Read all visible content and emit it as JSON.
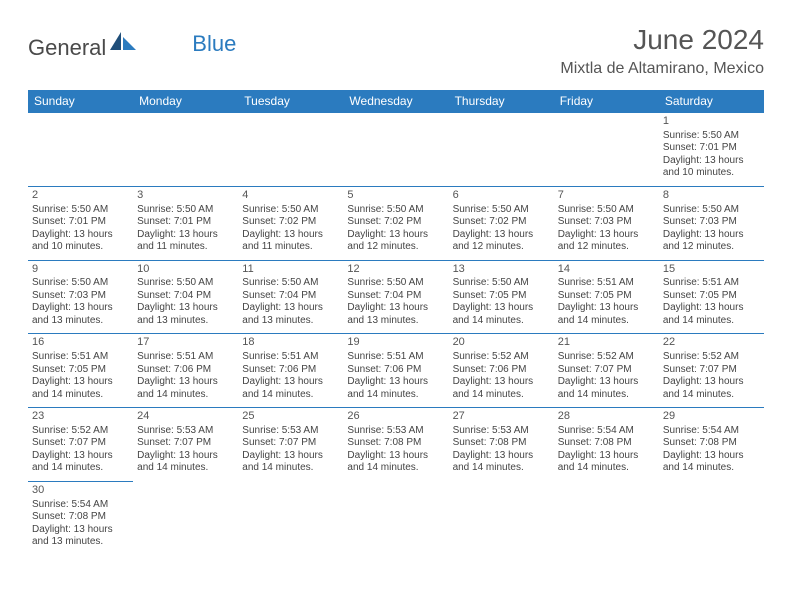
{
  "brand": {
    "part1": "General",
    "part2": "Blue"
  },
  "title": "June 2024",
  "location": "Mixtla de Altamirano, Mexico",
  "colors": {
    "header_bg": "#2b7bbf",
    "header_text": "#ffffff",
    "border": "#2b7bbf",
    "body_text": "#444444",
    "title_text": "#555555",
    "background": "#ffffff"
  },
  "weekdays": [
    "Sunday",
    "Monday",
    "Tuesday",
    "Wednesday",
    "Thursday",
    "Friday",
    "Saturday"
  ],
  "grid": [
    [
      null,
      null,
      null,
      null,
      null,
      null,
      {
        "n": "1",
        "sr": "Sunrise: 5:50 AM",
        "ss": "Sunset: 7:01 PM",
        "d1": "Daylight: 13 hours",
        "d2": "and 10 minutes."
      }
    ],
    [
      {
        "n": "2",
        "sr": "Sunrise: 5:50 AM",
        "ss": "Sunset: 7:01 PM",
        "d1": "Daylight: 13 hours",
        "d2": "and 10 minutes."
      },
      {
        "n": "3",
        "sr": "Sunrise: 5:50 AM",
        "ss": "Sunset: 7:01 PM",
        "d1": "Daylight: 13 hours",
        "d2": "and 11 minutes."
      },
      {
        "n": "4",
        "sr": "Sunrise: 5:50 AM",
        "ss": "Sunset: 7:02 PM",
        "d1": "Daylight: 13 hours",
        "d2": "and 11 minutes."
      },
      {
        "n": "5",
        "sr": "Sunrise: 5:50 AM",
        "ss": "Sunset: 7:02 PM",
        "d1": "Daylight: 13 hours",
        "d2": "and 12 minutes."
      },
      {
        "n": "6",
        "sr": "Sunrise: 5:50 AM",
        "ss": "Sunset: 7:02 PM",
        "d1": "Daylight: 13 hours",
        "d2": "and 12 minutes."
      },
      {
        "n": "7",
        "sr": "Sunrise: 5:50 AM",
        "ss": "Sunset: 7:03 PM",
        "d1": "Daylight: 13 hours",
        "d2": "and 12 minutes."
      },
      {
        "n": "8",
        "sr": "Sunrise: 5:50 AM",
        "ss": "Sunset: 7:03 PM",
        "d1": "Daylight: 13 hours",
        "d2": "and 12 minutes."
      }
    ],
    [
      {
        "n": "9",
        "sr": "Sunrise: 5:50 AM",
        "ss": "Sunset: 7:03 PM",
        "d1": "Daylight: 13 hours",
        "d2": "and 13 minutes."
      },
      {
        "n": "10",
        "sr": "Sunrise: 5:50 AM",
        "ss": "Sunset: 7:04 PM",
        "d1": "Daylight: 13 hours",
        "d2": "and 13 minutes."
      },
      {
        "n": "11",
        "sr": "Sunrise: 5:50 AM",
        "ss": "Sunset: 7:04 PM",
        "d1": "Daylight: 13 hours",
        "d2": "and 13 minutes."
      },
      {
        "n": "12",
        "sr": "Sunrise: 5:50 AM",
        "ss": "Sunset: 7:04 PM",
        "d1": "Daylight: 13 hours",
        "d2": "and 13 minutes."
      },
      {
        "n": "13",
        "sr": "Sunrise: 5:50 AM",
        "ss": "Sunset: 7:05 PM",
        "d1": "Daylight: 13 hours",
        "d2": "and 14 minutes."
      },
      {
        "n": "14",
        "sr": "Sunrise: 5:51 AM",
        "ss": "Sunset: 7:05 PM",
        "d1": "Daylight: 13 hours",
        "d2": "and 14 minutes."
      },
      {
        "n": "15",
        "sr": "Sunrise: 5:51 AM",
        "ss": "Sunset: 7:05 PM",
        "d1": "Daylight: 13 hours",
        "d2": "and 14 minutes."
      }
    ],
    [
      {
        "n": "16",
        "sr": "Sunrise: 5:51 AM",
        "ss": "Sunset: 7:05 PM",
        "d1": "Daylight: 13 hours",
        "d2": "and 14 minutes."
      },
      {
        "n": "17",
        "sr": "Sunrise: 5:51 AM",
        "ss": "Sunset: 7:06 PM",
        "d1": "Daylight: 13 hours",
        "d2": "and 14 minutes."
      },
      {
        "n": "18",
        "sr": "Sunrise: 5:51 AM",
        "ss": "Sunset: 7:06 PM",
        "d1": "Daylight: 13 hours",
        "d2": "and 14 minutes."
      },
      {
        "n": "19",
        "sr": "Sunrise: 5:51 AM",
        "ss": "Sunset: 7:06 PM",
        "d1": "Daylight: 13 hours",
        "d2": "and 14 minutes."
      },
      {
        "n": "20",
        "sr": "Sunrise: 5:52 AM",
        "ss": "Sunset: 7:06 PM",
        "d1": "Daylight: 13 hours",
        "d2": "and 14 minutes."
      },
      {
        "n": "21",
        "sr": "Sunrise: 5:52 AM",
        "ss": "Sunset: 7:07 PM",
        "d1": "Daylight: 13 hours",
        "d2": "and 14 minutes."
      },
      {
        "n": "22",
        "sr": "Sunrise: 5:52 AM",
        "ss": "Sunset: 7:07 PM",
        "d1": "Daylight: 13 hours",
        "d2": "and 14 minutes."
      }
    ],
    [
      {
        "n": "23",
        "sr": "Sunrise: 5:52 AM",
        "ss": "Sunset: 7:07 PM",
        "d1": "Daylight: 13 hours",
        "d2": "and 14 minutes."
      },
      {
        "n": "24",
        "sr": "Sunrise: 5:53 AM",
        "ss": "Sunset: 7:07 PM",
        "d1": "Daylight: 13 hours",
        "d2": "and 14 minutes."
      },
      {
        "n": "25",
        "sr": "Sunrise: 5:53 AM",
        "ss": "Sunset: 7:07 PM",
        "d1": "Daylight: 13 hours",
        "d2": "and 14 minutes."
      },
      {
        "n": "26",
        "sr": "Sunrise: 5:53 AM",
        "ss": "Sunset: 7:08 PM",
        "d1": "Daylight: 13 hours",
        "d2": "and 14 minutes."
      },
      {
        "n": "27",
        "sr": "Sunrise: 5:53 AM",
        "ss": "Sunset: 7:08 PM",
        "d1": "Daylight: 13 hours",
        "d2": "and 14 minutes."
      },
      {
        "n": "28",
        "sr": "Sunrise: 5:54 AM",
        "ss": "Sunset: 7:08 PM",
        "d1": "Daylight: 13 hours",
        "d2": "and 14 minutes."
      },
      {
        "n": "29",
        "sr": "Sunrise: 5:54 AM",
        "ss": "Sunset: 7:08 PM",
        "d1": "Daylight: 13 hours",
        "d2": "and 14 minutes."
      }
    ],
    [
      {
        "n": "30",
        "sr": "Sunrise: 5:54 AM",
        "ss": "Sunset: 7:08 PM",
        "d1": "Daylight: 13 hours",
        "d2": "and 13 minutes."
      },
      null,
      null,
      null,
      null,
      null,
      null
    ]
  ]
}
